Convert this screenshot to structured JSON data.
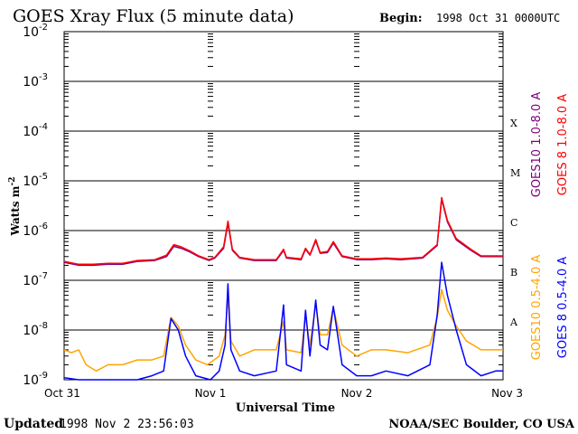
{
  "chart_data": {
    "type": "line",
    "title": "GOES Xray Flux (5 minute data)",
    "begin": {
      "label": "Begin:",
      "value": "1998 Oct 31 0000UTC"
    },
    "ylabel": "Watts m",
    "ylabel_sup": "-2",
    "xlabel": "Universal Time",
    "y_scale": "log",
    "ylim": [
      1e-09,
      0.01
    ],
    "y_ticks": [
      {
        "base": "10",
        "exp": "-2"
      },
      {
        "base": "10",
        "exp": "-3"
      },
      {
        "base": "10",
        "exp": "-4"
      },
      {
        "base": "10",
        "exp": "-5"
      },
      {
        "base": "10",
        "exp": "-6"
      },
      {
        "base": "10",
        "exp": "-7"
      },
      {
        "base": "10",
        "exp": "-8"
      },
      {
        "base": "10",
        "exp": "-9"
      }
    ],
    "x_unit": "days since 1998 Oct 31 0000UTC",
    "xlim": [
      0,
      3
    ],
    "x_ticks": [
      {
        "x": 0,
        "label": "Oct 31"
      },
      {
        "x": 1,
        "label": "Nov 1"
      },
      {
        "x": 2,
        "label": "Nov 2"
      },
      {
        "x": 3,
        "label": "Nov 3"
      }
    ],
    "flare_classes": [
      {
        "label": "X",
        "exp": -4
      },
      {
        "label": "M",
        "exp": -5
      },
      {
        "label": "C",
        "exp": -6
      },
      {
        "label": "B",
        "exp": -7
      },
      {
        "label": "A",
        "exp": -8
      }
    ],
    "grid": "horizontal at each decade",
    "legend_placement": "right, rotated",
    "series": [
      {
        "name": "GOES10 1.0-8.0 A",
        "color": "#800080",
        "band": "long",
        "points": [
          [
            0,
            2.3e-07
          ],
          [
            0.1,
            2e-07
          ],
          [
            0.2,
            2e-07
          ],
          [
            0.3,
            2.1e-07
          ],
          [
            0.4,
            2.1e-07
          ],
          [
            0.5,
            2.4e-07
          ],
          [
            0.62,
            2.5e-07
          ],
          [
            0.7,
            3e-07
          ],
          [
            0.75,
            4.8e-07
          ],
          [
            0.8,
            4.4e-07
          ],
          [
            0.86,
            3.7e-07
          ],
          [
            0.92,
            3e-07
          ],
          [
            0.99,
            2.5e-07
          ],
          [
            1.03,
            2.8e-07
          ],
          [
            1.09,
            4.4e-07
          ],
          [
            1.12,
            1.4e-06
          ],
          [
            1.15,
            4e-07
          ],
          [
            1.2,
            2.8e-07
          ],
          [
            1.3,
            2.5e-07
          ],
          [
            1.45,
            2.5e-07
          ],
          [
            1.5,
            4e-07
          ],
          [
            1.52,
            2.8e-07
          ],
          [
            1.62,
            2.6e-07
          ],
          [
            1.65,
            4.2e-07
          ],
          [
            1.68,
            3.2e-07
          ],
          [
            1.72,
            6.2e-07
          ],
          [
            1.75,
            3.5e-07
          ],
          [
            1.8,
            3.6e-07
          ],
          [
            1.84,
            5.6e-07
          ],
          [
            1.9,
            3e-07
          ],
          [
            2.0,
            2.6e-07
          ],
          [
            2.1,
            2.6e-07
          ],
          [
            2.2,
            2.7e-07
          ],
          [
            2.3,
            2.6e-07
          ],
          [
            2.45,
            2.8e-07
          ],
          [
            2.55,
            5e-07
          ],
          [
            2.58,
            4.3e-06
          ],
          [
            2.62,
            1.5e-06
          ],
          [
            2.68,
            6.5e-07
          ],
          [
            2.78,
            4e-07
          ],
          [
            2.85,
            3e-07
          ],
          [
            2.95,
            3e-07
          ],
          [
            3.0,
            3e-07
          ]
        ]
      },
      {
        "name": "GOES 8 1.0-8.0 A",
        "color": "#ff0000",
        "band": "long",
        "points": [
          [
            0,
            2.4e-07
          ],
          [
            0.1,
            2.1e-07
          ],
          [
            0.2,
            2.1e-07
          ],
          [
            0.3,
            2.2e-07
          ],
          [
            0.4,
            2.2e-07
          ],
          [
            0.5,
            2.5e-07
          ],
          [
            0.62,
            2.6e-07
          ],
          [
            0.7,
            3.2e-07
          ],
          [
            0.75,
            5.2e-07
          ],
          [
            0.8,
            4.7e-07
          ],
          [
            0.86,
            3.9e-07
          ],
          [
            0.92,
            3.1e-07
          ],
          [
            0.99,
            2.6e-07
          ],
          [
            1.03,
            2.9e-07
          ],
          [
            1.09,
            4.7e-07
          ],
          [
            1.12,
            1.55e-06
          ],
          [
            1.15,
            4.2e-07
          ],
          [
            1.2,
            2.9e-07
          ],
          [
            1.3,
            2.6e-07
          ],
          [
            1.45,
            2.6e-07
          ],
          [
            1.5,
            4.2e-07
          ],
          [
            1.52,
            2.9e-07
          ],
          [
            1.62,
            2.7e-07
          ],
          [
            1.65,
            4.4e-07
          ],
          [
            1.68,
            3.3e-07
          ],
          [
            1.72,
            6.6e-07
          ],
          [
            1.75,
            3.6e-07
          ],
          [
            1.8,
            3.8e-07
          ],
          [
            1.84,
            6e-07
          ],
          [
            1.9,
            3.1e-07
          ],
          [
            2.0,
            2.7e-07
          ],
          [
            2.1,
            2.7e-07
          ],
          [
            2.2,
            2.8e-07
          ],
          [
            2.3,
            2.7e-07
          ],
          [
            2.45,
            2.9e-07
          ],
          [
            2.55,
            5.2e-07
          ],
          [
            2.58,
            4.6e-06
          ],
          [
            2.62,
            1.6e-06
          ],
          [
            2.68,
            6.9e-07
          ],
          [
            2.78,
            4.2e-07
          ],
          [
            2.85,
            3.1e-07
          ],
          [
            2.95,
            3.1e-07
          ],
          [
            3.0,
            3.1e-07
          ]
        ]
      },
      {
        "name": "GOES10 0.5-4.0 A",
        "color": "#ffa500",
        "band": "short",
        "points": [
          [
            0,
            4e-09
          ],
          [
            0.05,
            3.5e-09
          ],
          [
            0.1,
            4e-09
          ],
          [
            0.15,
            2e-09
          ],
          [
            0.22,
            1.5e-09
          ],
          [
            0.3,
            2e-09
          ],
          [
            0.4,
            2e-09
          ],
          [
            0.5,
            2.5e-09
          ],
          [
            0.6,
            2.5e-09
          ],
          [
            0.68,
            3e-09
          ],
          [
            0.73,
            1.8e-08
          ],
          [
            0.78,
            1.2e-08
          ],
          [
            0.83,
            5e-09
          ],
          [
            0.9,
            2.5e-09
          ],
          [
            0.98,
            2e-09
          ],
          [
            1.06,
            3e-09
          ],
          [
            1.1,
            8e-09
          ],
          [
            1.12,
            4.5e-08
          ],
          [
            1.14,
            6e-09
          ],
          [
            1.2,
            3e-09
          ],
          [
            1.3,
            4e-09
          ],
          [
            1.45,
            4e-09
          ],
          [
            1.5,
            1.5e-08
          ],
          [
            1.52,
            4e-09
          ],
          [
            1.62,
            3.5e-09
          ],
          [
            1.65,
            1.8e-08
          ],
          [
            1.68,
            5e-09
          ],
          [
            1.72,
            3.2e-08
          ],
          [
            1.75,
            8e-09
          ],
          [
            1.8,
            8e-09
          ],
          [
            1.84,
            2.8e-08
          ],
          [
            1.9,
            5e-09
          ],
          [
            2.0,
            3e-09
          ],
          [
            2.1,
            4e-09
          ],
          [
            2.2,
            4e-09
          ],
          [
            2.35,
            3.5e-09
          ],
          [
            2.5,
            5e-09
          ],
          [
            2.55,
            1.8e-08
          ],
          [
            2.58,
            6.5e-08
          ],
          [
            2.62,
            2.5e-08
          ],
          [
            2.68,
            1.2e-08
          ],
          [
            2.75,
            6e-09
          ],
          [
            2.85,
            4e-09
          ],
          [
            2.95,
            4e-09
          ],
          [
            3.0,
            4e-09
          ]
        ]
      },
      {
        "name": "GOES 8 0.5-4.0 A",
        "color": "#0000ff",
        "band": "short",
        "points": [
          [
            0,
            1.1e-09
          ],
          [
            0.1,
            1e-09
          ],
          [
            0.2,
            1e-09
          ],
          [
            0.3,
            1e-09
          ],
          [
            0.4,
            1e-09
          ],
          [
            0.5,
            1e-09
          ],
          [
            0.6,
            1.2e-09
          ],
          [
            0.68,
            1.5e-09
          ],
          [
            0.73,
            1.7e-08
          ],
          [
            0.78,
            1e-08
          ],
          [
            0.83,
            3e-09
          ],
          [
            0.9,
            1.2e-09
          ],
          [
            1.0,
            1e-09
          ],
          [
            1.06,
            1.5e-09
          ],
          [
            1.1,
            5e-09
          ],
          [
            1.12,
            8.5e-08
          ],
          [
            1.14,
            4e-09
          ],
          [
            1.2,
            1.5e-09
          ],
          [
            1.3,
            1.2e-09
          ],
          [
            1.45,
            1.5e-09
          ],
          [
            1.5,
            3.2e-08
          ],
          [
            1.52,
            2e-09
          ],
          [
            1.62,
            1.5e-09
          ],
          [
            1.65,
            2.5e-08
          ],
          [
            1.68,
            3e-09
          ],
          [
            1.72,
            4e-08
          ],
          [
            1.75,
            5e-09
          ],
          [
            1.8,
            4e-09
          ],
          [
            1.84,
            3e-08
          ],
          [
            1.9,
            2e-09
          ],
          [
            2.0,
            1.2e-09
          ],
          [
            2.1,
            1.2e-09
          ],
          [
            2.2,
            1.5e-09
          ],
          [
            2.35,
            1.2e-09
          ],
          [
            2.5,
            2e-09
          ],
          [
            2.55,
            2e-08
          ],
          [
            2.58,
            2.3e-07
          ],
          [
            2.62,
            5e-08
          ],
          [
            2.68,
            1e-08
          ],
          [
            2.75,
            2e-09
          ],
          [
            2.85,
            1.2e-09
          ],
          [
            2.95,
            1.5e-09
          ],
          [
            3.0,
            1.5e-09
          ]
        ]
      }
    ]
  },
  "footer": {
    "updated_label": "Updated",
    "updated_value": "1998 Nov  2 23:56:03",
    "credit": "NOAA/SEC Boulder, CO USA"
  }
}
